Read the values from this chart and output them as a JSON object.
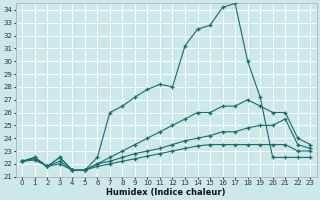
{
  "xlabel": "Humidex (Indice chaleur)",
  "background_color": "#cce8e8",
  "grid_color": "#aad4d4",
  "line_color": "#1a6b6b",
  "xlim": [
    -0.5,
    23.5
  ],
  "ylim": [
    21,
    34.5
  ],
  "xticks": [
    0,
    1,
    2,
    3,
    4,
    5,
    6,
    7,
    8,
    9,
    10,
    11,
    12,
    13,
    14,
    15,
    16,
    17,
    18,
    19,
    20,
    21,
    22,
    23
  ],
  "yticks": [
    21,
    22,
    23,
    24,
    25,
    26,
    27,
    28,
    29,
    30,
    31,
    32,
    33,
    34
  ],
  "series": [
    {
      "x": [
        0,
        1,
        2,
        3,
        4,
        5,
        6,
        7,
        8,
        9,
        10,
        11,
        12,
        13,
        14,
        15,
        16,
        17,
        18,
        19,
        20,
        21,
        22,
        23
      ],
      "y": [
        22.2,
        22.5,
        21.8,
        22.5,
        21.5,
        21.5,
        22.5,
        26.0,
        26.5,
        27.2,
        27.8,
        28.2,
        28.0,
        31.2,
        32.5,
        32.8,
        34.2,
        34.5,
        30.0,
        27.2,
        22.5,
        22.5,
        22.5,
        22.5
      ]
    },
    {
      "x": [
        0,
        1,
        2,
        3,
        4,
        5,
        6,
        7,
        8,
        9,
        10,
        11,
        12,
        13,
        14,
        15,
        16,
        17,
        18,
        19,
        20,
        21,
        22,
        23
      ],
      "y": [
        22.2,
        22.5,
        21.8,
        22.5,
        21.5,
        21.5,
        22.0,
        22.5,
        23.0,
        23.5,
        24.0,
        24.5,
        25.0,
        25.5,
        26.0,
        26.0,
        26.5,
        26.5,
        27.0,
        26.5,
        26.0,
        26.0,
        24.0,
        23.5
      ]
    },
    {
      "x": [
        0,
        1,
        2,
        3,
        4,
        5,
        6,
        7,
        8,
        9,
        10,
        11,
        12,
        13,
        14,
        15,
        16,
        17,
        18,
        19,
        20,
        21,
        22,
        23
      ],
      "y": [
        22.2,
        22.4,
        21.8,
        22.2,
        21.5,
        21.5,
        22.0,
        22.2,
        22.5,
        22.8,
        23.0,
        23.2,
        23.5,
        23.8,
        24.0,
        24.2,
        24.5,
        24.5,
        24.8,
        25.0,
        25.0,
        25.5,
        23.5,
        23.2
      ]
    },
    {
      "x": [
        0,
        1,
        2,
        3,
        4,
        5,
        6,
        7,
        8,
        9,
        10,
        11,
        12,
        13,
        14,
        15,
        16,
        17,
        18,
        19,
        20,
        21,
        22,
        23
      ],
      "y": [
        22.2,
        22.3,
        21.8,
        22.0,
        21.5,
        21.5,
        21.8,
        22.0,
        22.2,
        22.4,
        22.6,
        22.8,
        23.0,
        23.2,
        23.4,
        23.5,
        23.5,
        23.5,
        23.5,
        23.5,
        23.5,
        23.5,
        23.0,
        23.0
      ]
    }
  ]
}
